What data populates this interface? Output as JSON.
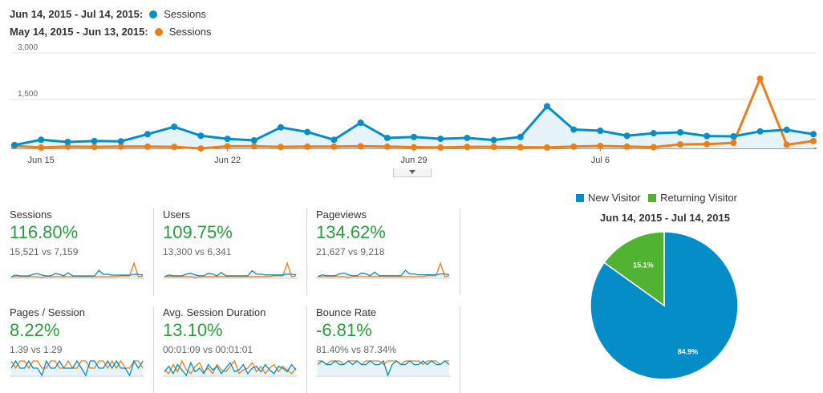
{
  "legend": {
    "rows": [
      {
        "range": "Jun 14, 2015 - Jul 14, 2015:",
        "series": "Sessions",
        "color": "#058dc7"
      },
      {
        "range": "May 14, 2015 - Jun 13, 2015:",
        "series": "Sessions",
        "color": "#ed7e17"
      }
    ]
  },
  "chart_data": [
    {
      "type": "line",
      "y_ticks": [
        "3,000",
        "1,500"
      ],
      "ylim": [
        0,
        3000
      ],
      "x_tick_labels": [
        "Jun 15",
        "Jun 22",
        "Jun 29",
        "Jul 6"
      ],
      "x": [
        "Jun 14",
        "Jun 15",
        "Jun 16",
        "Jun 17",
        "Jun 18",
        "Jun 19",
        "Jun 20",
        "Jun 21",
        "Jun 22",
        "Jun 23",
        "Jun 24",
        "Jun 25",
        "Jun 26",
        "Jun 27",
        "Jun 28",
        "Jun 29",
        "Jun 30",
        "Jul 1",
        "Jul 2",
        "Jul 3",
        "Jul 4",
        "Jul 5",
        "Jul 6",
        "Jul 7",
        "Jul 8",
        "Jul 9",
        "Jul 10",
        "Jul 11",
        "Jul 12",
        "Jul 13",
        "Jul 14"
      ],
      "series": [
        {
          "name": "Sessions",
          "period": "Jun 14, 2015 - Jul 14, 2015",
          "color": "#058dc7",
          "values": [
            30,
            200,
            130,
            160,
            150,
            380,
            620,
            330,
            230,
            180,
            600,
            450,
            200,
            750,
            260,
            290,
            230,
            260,
            190,
            290,
            1280,
            530,
            490,
            330,
            410,
            440,
            320,
            310,
            470,
            520,
            380
          ]
        },
        {
          "name": "Sessions",
          "period": "May 14, 2015 - Jun 13, 2015",
          "color": "#ed7e17",
          "values": [
            0,
            -50,
            -20,
            -30,
            -20,
            -20,
            -30,
            -80,
            -10,
            -10,
            -30,
            -20,
            -20,
            -10,
            -20,
            -40,
            -50,
            -30,
            -30,
            -40,
            -50,
            -20,
            0,
            -20,
            -40,
            50,
            60,
            100,
            2170,
            40,
            160
          ]
        }
      ]
    },
    {
      "type": "pie",
      "title": "Jun 14, 2015 - Jul 14, 2015",
      "slices": [
        {
          "name": "New Visitor",
          "value": 84.9,
          "label": "84.9%",
          "color": "#058dc7"
        },
        {
          "name": "Returning Visitor",
          "value": 15.1,
          "label": "15.1%",
          "color": "#50b432"
        }
      ]
    }
  ],
  "metrics": [
    {
      "title": "Sessions",
      "percent": "116.80%",
      "vs": "15,521 vs 7,159",
      "spark_a": [
        3,
        5,
        4,
        4,
        4,
        6,
        7,
        5,
        4,
        4,
        7,
        6,
        4,
        8,
        4,
        4,
        4,
        4,
        4,
        4,
        11,
        6,
        6,
        5,
        5,
        5,
        5,
        5,
        6,
        6,
        5
      ],
      "spark_b": [
        3,
        3,
        3,
        3,
        3,
        3,
        3,
        2,
        3,
        3,
        3,
        3,
        3,
        3,
        3,
        3,
        3,
        3,
        3,
        3,
        3,
        3,
        3,
        3,
        3,
        4,
        4,
        4,
        20,
        3,
        4
      ]
    },
    {
      "title": "Users",
      "percent": "109.75%",
      "vs": "13,300 vs 6,341",
      "spark_a": [
        3,
        5,
        4,
        4,
        4,
        6,
        7,
        5,
        4,
        4,
        7,
        6,
        4,
        8,
        4,
        4,
        4,
        4,
        4,
        4,
        10,
        6,
        6,
        5,
        5,
        5,
        5,
        5,
        6,
        6,
        5
      ],
      "spark_b": [
        3,
        3,
        3,
        3,
        3,
        3,
        3,
        2,
        3,
        3,
        3,
        3,
        3,
        3,
        3,
        3,
        3,
        3,
        3,
        3,
        3,
        3,
        3,
        3,
        3,
        4,
        4,
        4,
        19,
        3,
        4
      ]
    },
    {
      "title": "Pageviews",
      "percent": "134.62%",
      "vs": "21,627 vs 9,218",
      "spark_a": [
        3,
        5,
        4,
        4,
        4,
        6,
        7,
        5,
        4,
        4,
        7,
        6,
        4,
        8,
        4,
        4,
        4,
        4,
        4,
        4,
        10,
        6,
        6,
        5,
        5,
        5,
        5,
        5,
        6,
        6,
        5
      ],
      "spark_b": [
        3,
        3,
        3,
        3,
        3,
        3,
        3,
        2,
        3,
        3,
        3,
        3,
        3,
        3,
        3,
        3,
        3,
        3,
        3,
        3,
        3,
        3,
        3,
        3,
        3,
        4,
        4,
        4,
        18,
        3,
        4
      ]
    },
    {
      "title": "Pages / Session",
      "percent": "8.22%",
      "vs": "1.39 vs 1.29",
      "spark_a": [
        8,
        9,
        8,
        8,
        9,
        8,
        8,
        7,
        9,
        8,
        8,
        9,
        8,
        8,
        8,
        9,
        8,
        7,
        9,
        9,
        8,
        8,
        9,
        8,
        9,
        8,
        8,
        7,
        9,
        8,
        9
      ],
      "spark_b": [
        9,
        8,
        9,
        9,
        8,
        9,
        9,
        8,
        8,
        9,
        9,
        8,
        8,
        9,
        8,
        8,
        9,
        9,
        8,
        8,
        9,
        9,
        8,
        9,
        8,
        9,
        8,
        8,
        9,
        9,
        8
      ]
    },
    {
      "title": "Avg. Session Duration",
      "percent": "13.10%",
      "vs": "00:01:09 vs 00:01:01",
      "spark_a": [
        6,
        9,
        5,
        10,
        7,
        4,
        11,
        6,
        8,
        5,
        10,
        7,
        9,
        5,
        8,
        11,
        6,
        7,
        10,
        5,
        8,
        9,
        6,
        10,
        7,
        5,
        9,
        8,
        6,
        10,
        7
      ],
      "spark_b": [
        7,
        5,
        10,
        6,
        12,
        7,
        5,
        9,
        11,
        6,
        8,
        5,
        10,
        7,
        6,
        9,
        12,
        5,
        7,
        8,
        11,
        6,
        9,
        5,
        8,
        10,
        6,
        9,
        7,
        5,
        8
      ]
    },
    {
      "title": "Bounce Rate",
      "percent": "-6.81%",
      "vs": "81.40% vs 87.34%",
      "spark_a": [
        10,
        11,
        10,
        10,
        11,
        10,
        10,
        11,
        10,
        11,
        10,
        10,
        11,
        10,
        10,
        11,
        7,
        10,
        11,
        10,
        10,
        11,
        10,
        10,
        11,
        10,
        11,
        10,
        10,
        11,
        10
      ],
      "spark_b": [
        11,
        11,
        10,
        11,
        11,
        11,
        10,
        11,
        11,
        11,
        10,
        11,
        11,
        11,
        11,
        10,
        11,
        11,
        11,
        10,
        11,
        11,
        11,
        11,
        10,
        11,
        11,
        11,
        10,
        11,
        11
      ]
    }
  ]
}
